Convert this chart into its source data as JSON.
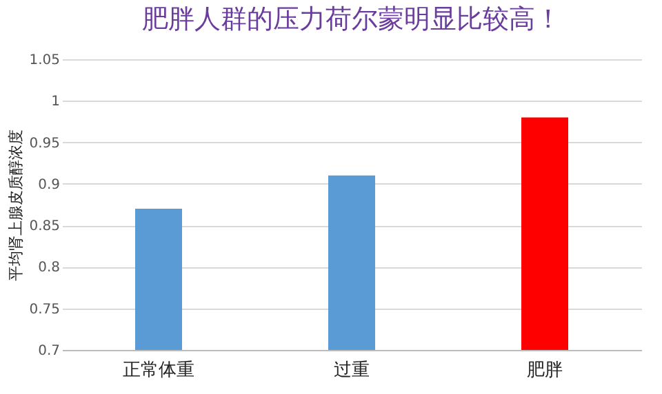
{
  "chart_data": {
    "type": "bar",
    "title": "肥胖人群的压力荷尔蒙明显比较高！",
    "ylabel": "平均肾上腺皮质醇浓度",
    "categories": [
      "正常体重",
      "过重",
      "肥胖"
    ],
    "values": [
      0.87,
      0.91,
      0.98
    ],
    "colors": [
      "#5b9bd5",
      "#5b9bd5",
      "#ff0000"
    ],
    "ylim": [
      0.7,
      1.05
    ],
    "yticks": [
      0.7,
      0.75,
      0.8,
      0.85,
      0.9,
      0.95,
      1,
      1.05
    ],
    "grid": "y"
  }
}
